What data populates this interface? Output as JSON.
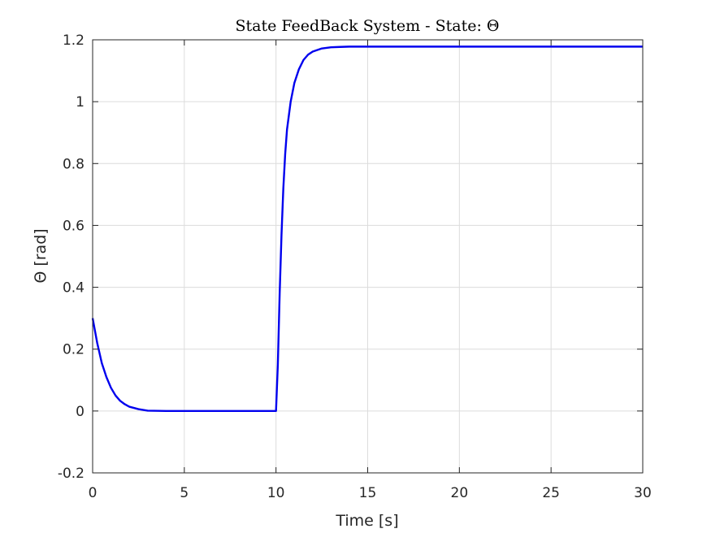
{
  "chart_data": {
    "type": "line",
    "title": "State FeedBack System - State: Θ",
    "xlabel": "Time [s]",
    "ylabel": "Θ [rad]",
    "xlim": [
      0,
      30
    ],
    "ylim": [
      -0.2,
      1.2
    ],
    "xticks": [
      0,
      5,
      10,
      15,
      20,
      25,
      30
    ],
    "yticks": [
      -0.2,
      0,
      0.2,
      0.4,
      0.6,
      0.8,
      1,
      1.2
    ],
    "xtick_labels": [
      "0",
      "5",
      "10",
      "15",
      "20",
      "25",
      "30"
    ],
    "ytick_labels": [
      "-0.2",
      "0",
      "0.2",
      "0.4",
      "0.6",
      "0.8",
      "1",
      "1.2"
    ],
    "grid": true,
    "series": [
      {
        "color": "#0000ee",
        "x": [
          0,
          0.25,
          0.5,
          0.75,
          1.0,
          1.25,
          1.5,
          1.75,
          2.0,
          2.5,
          3.0,
          4.0,
          6.0,
          8.0,
          9.9,
          10.0,
          10.1,
          10.2,
          10.3,
          10.4,
          10.5,
          10.6,
          10.8,
          11.0,
          11.25,
          11.5,
          11.75,
          12.0,
          12.5,
          13.0,
          13.5,
          14.0,
          15.0,
          17.0,
          20.0,
          25.0,
          30.0
        ],
        "y": [
          0.3,
          0.22,
          0.155,
          0.11,
          0.075,
          0.05,
          0.033,
          0.022,
          0.014,
          0.006,
          0.001,
          0.0,
          0.0,
          0.0,
          0.0,
          0.0,
          0.15,
          0.38,
          0.57,
          0.72,
          0.83,
          0.91,
          1.0,
          1.06,
          1.105,
          1.135,
          1.152,
          1.162,
          1.172,
          1.176,
          1.177,
          1.178,
          1.178,
          1.178,
          1.178,
          1.178,
          1.178
        ]
      }
    ]
  }
}
